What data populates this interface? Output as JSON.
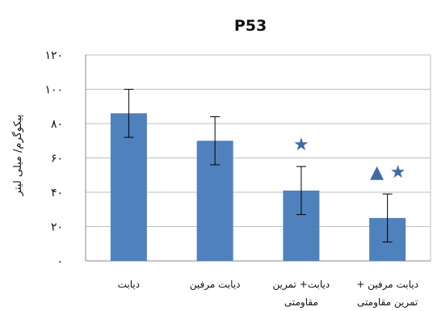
{
  "chart_data": {
    "type": "bar",
    "title": "P53",
    "ylabel": "پیکوگرم/ میلی لیتر",
    "xlabel": "",
    "ylim": [
      0,
      120
    ],
    "yticks": [
      "۰",
      "۲۰",
      "۴۰",
      "۶۰",
      "۸۰",
      "۱۰۰",
      "۱۲۰"
    ],
    "grid": true,
    "categories": [
      [
        "دیابت"
      ],
      [
        "دیابت مرفین"
      ],
      [
        "دیابت+ تمرین",
        "مقاومتی"
      ],
      [
        "دیابت مرفین +",
        "تمرین مقاومتی"
      ]
    ],
    "values": [
      86,
      70,
      41,
      25
    ],
    "error": [
      14,
      14,
      14,
      14
    ],
    "markers": [
      [],
      [],
      [
        "★"
      ],
      [
        "▲",
        "★"
      ]
    ],
    "colors": {
      "bar": "#4f81bd",
      "marker": "#3f6aa6",
      "grid": "#bfbfbf",
      "axis": "#888888"
    }
  }
}
